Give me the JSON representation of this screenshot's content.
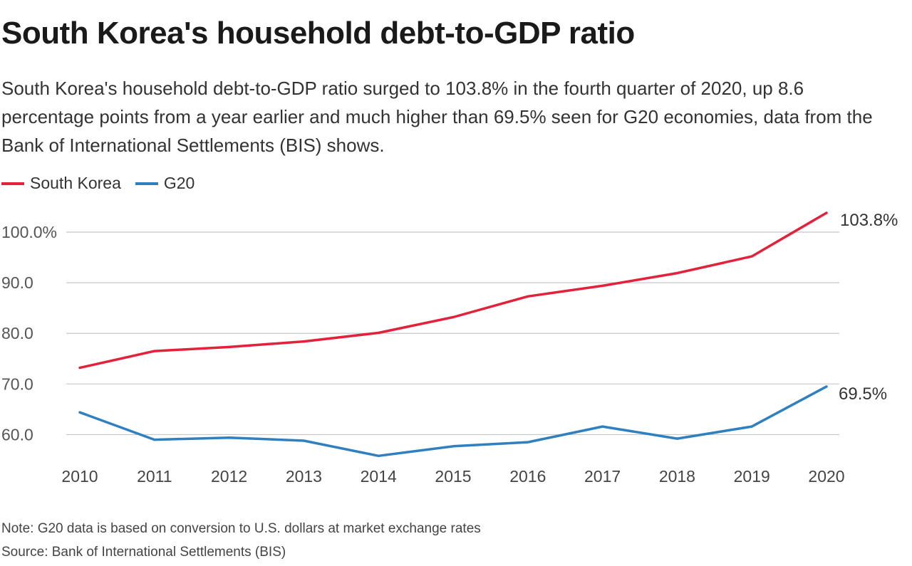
{
  "title": "South Korea's household debt-to-GDP ratio",
  "subtitle": "South Korea's household debt-to-GDP ratio surged to 103.8% in the fourth quarter of 2020, up 8.6 percentage points from a year earlier and much higher than 69.5% seen for G20 economies, data from the Bank of International Settlements (BIS) shows.",
  "legend": {
    "south_korea": "South Korea",
    "g20": "G20"
  },
  "colors": {
    "south_korea": "#e3213b",
    "g20": "#2f80c0",
    "grid": "#c8c8c8"
  },
  "end_labels": {
    "south_korea": "103.8%",
    "g20": "69.5%"
  },
  "note": "Note: G20 data is based on conversion to U.S. dollars at market exchange rates",
  "source": "Source: Bank of International Settlements (BIS)",
  "chart_data": {
    "type": "line",
    "title": "South Korea's household debt-to-GDP ratio",
    "xlabel": "",
    "ylabel": "",
    "x": [
      2010,
      2011,
      2012,
      2013,
      2014,
      2015,
      2016,
      2017,
      2018,
      2019,
      2020
    ],
    "x_tick_labels": [
      "2010",
      "2011",
      "2012",
      "2013",
      "2014",
      "2015",
      "2016",
      "2017",
      "2018",
      "2019",
      "2020"
    ],
    "y_ticks": [
      60,
      70,
      80,
      90,
      100
    ],
    "y_tick_labels": [
      "60.0",
      "70.0",
      "80.0",
      "90.0",
      "100.0%"
    ],
    "ylim": [
      55,
      104.5
    ],
    "grid": true,
    "series": [
      {
        "name": "South Korea",
        "values": [
          73.2,
          76.5,
          77.3,
          78.4,
          80.1,
          83.2,
          87.3,
          89.4,
          91.9,
          95.2,
          103.8
        ]
      },
      {
        "name": "G20",
        "values": [
          64.4,
          59.0,
          59.4,
          58.8,
          55.8,
          57.7,
          58.5,
          61.6,
          59.2,
          61.6,
          69.5
        ]
      }
    ]
  }
}
